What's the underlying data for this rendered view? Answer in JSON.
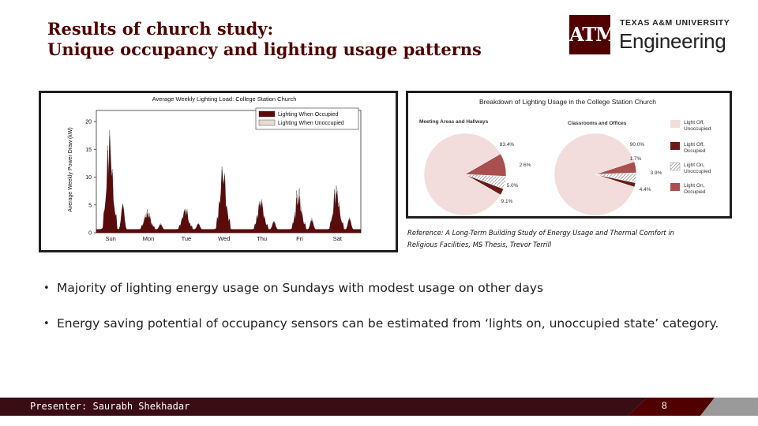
{
  "title": {
    "line1": "Results of church study:",
    "line2": "Unique occupancy and lighting usage patterns"
  },
  "logo": {
    "monogram": "ATM",
    "university": "TEXAS A&M UNIVERSITY",
    "unit": "Engineering"
  },
  "colors": {
    "maroon": "#500000",
    "occupied": "#5a0b0b",
    "unoccupied": "#e6dcd4",
    "light_off_unoccupied": "#f2dcdc",
    "light_off_occupied": "#6b1a1a",
    "light_on_occupied": "#a94f4f",
    "footer": "#3a0d14"
  },
  "chart_data": [
    {
      "type": "area",
      "title": "Average Weekly Lighting Load: College Station Church",
      "ylabel": "Average Weekly Power Draw (kW)",
      "xlabel": "",
      "ylim": [
        0,
        22
      ],
      "yticks": [
        0,
        5,
        10,
        15,
        20
      ],
      "categories": [
        "Sun",
        "Mon",
        "Tue",
        "Wed",
        "Thu",
        "Fri",
        "Sat"
      ],
      "legend_position": "top-right",
      "series": [
        {
          "name": "Lighting When Occupied",
          "color": "#5a0b0b",
          "peak_values": [
            17.5,
            3.5,
            4,
            11.5,
            5.5,
            6.5,
            7.5
          ]
        },
        {
          "name": "Lighting When Unoccupied",
          "color": "#e6dcd4",
          "peak_values": [
            18.5,
            4.2,
            4.3,
            12,
            6,
            8,
            8.5
          ]
        }
      ]
    },
    {
      "type": "pie",
      "title": "Breakdown of Lighting Usage in the College Station Church",
      "legend_position": "right",
      "categories": [
        "Light Off, Unoccupied",
        "Light Off, Occupied",
        "Light On, Unoccupied",
        "Light On, Occupied"
      ],
      "pies": [
        {
          "name": "Meeting Areas and Hallways",
          "values": [
            83.4,
            2.6,
            5.0,
            9.1
          ],
          "labels": [
            "83.4%",
            "2.6%",
            "5.0%",
            "9.1%"
          ]
        },
        {
          "name": "Classrooms and Offices",
          "values": [
            90.0,
            1.7,
            3.9,
            4.4
          ],
          "labels": [
            "90.0%",
            "1.7%",
            "3.9%",
            "4.4%"
          ]
        }
      ]
    }
  ],
  "reference": {
    "line1": "Reference: A Long-Term Building Study of Energy Usage and Thermal Comfort in",
    "line2": "Religious Facilities, MS Thesis, Trevor Terrill"
  },
  "bullets": [
    {
      "marker": "•",
      "text": "Majority of lighting energy usage on Sundays with modest usage on other days"
    },
    {
      "marker": "•",
      "text": "Energy saving potential of occupancy sensors can be estimated from ‘lights on, unoccupied state’ category."
    }
  ],
  "footer": {
    "presenter": "Presenter: Saurabh Shekhadar",
    "page_number": "8"
  }
}
